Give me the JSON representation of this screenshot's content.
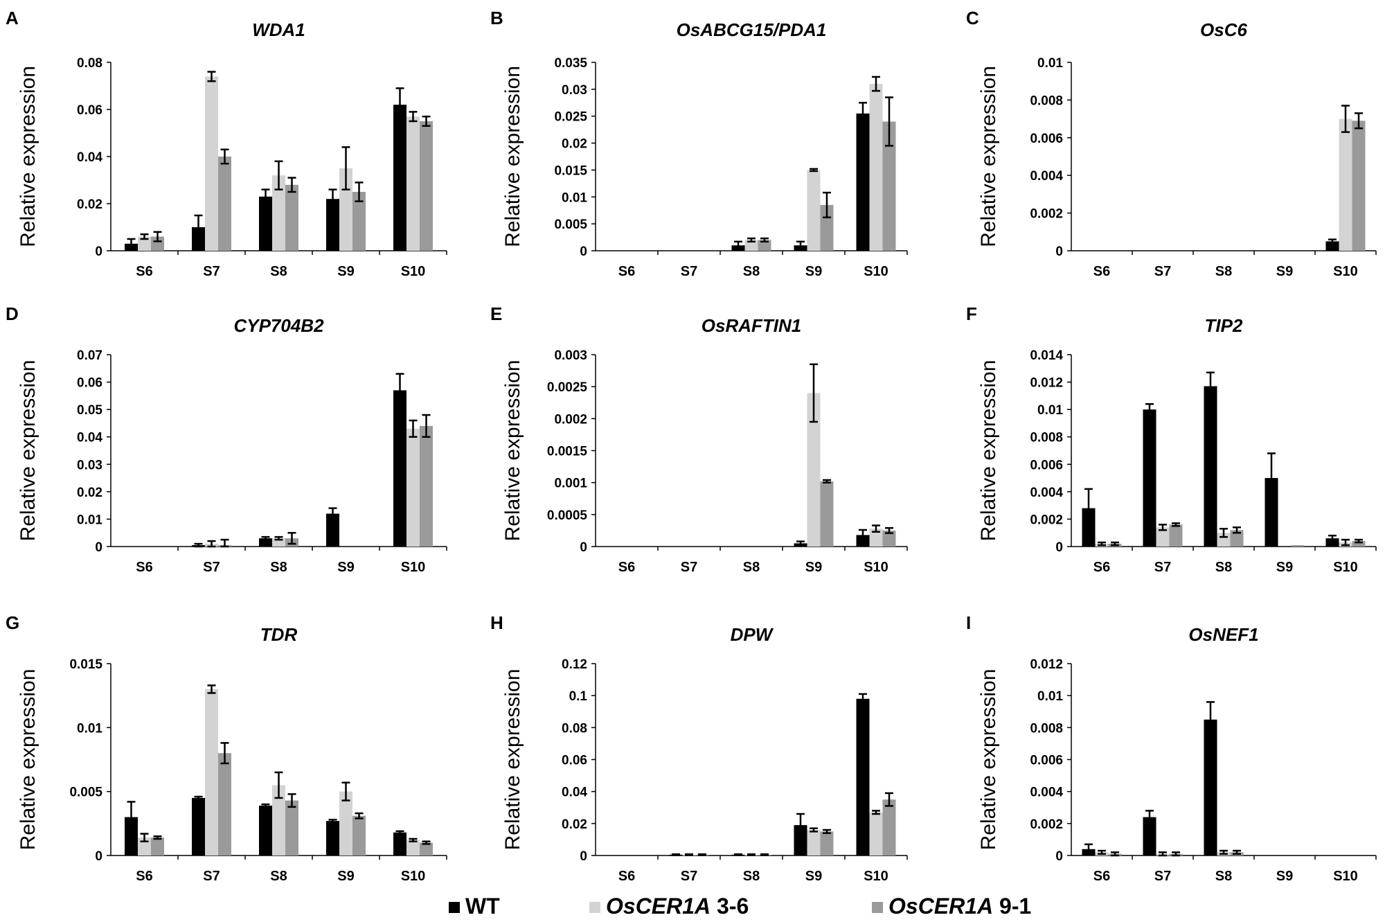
{
  "colors": {
    "wt": "#000000",
    "line36": "#d3d3d3",
    "line91": "#9a9a9a",
    "axis": "#000000",
    "error": "#000000"
  },
  "legend": [
    {
      "key": "wt",
      "name": "WT"
    },
    {
      "key": "line36",
      "name": "OsCER1A",
      "suffix": "3-6"
    },
    {
      "key": "line91",
      "name": "OsCER1A",
      "suffix": "9-1"
    }
  ],
  "chart_data": [
    {
      "letter": "A",
      "type": "bar",
      "title": "WDA1",
      "ylabel": "Relative expression",
      "categories": [
        "S6",
        "S7",
        "S8",
        "S9",
        "S10"
      ],
      "ylim": [
        0,
        0.08
      ],
      "yticks": [
        "0",
        "0.02",
        "0.04",
        "0.06",
        "0.08"
      ],
      "series": [
        {
          "name": "WT",
          "key": "wt",
          "values": [
            0.003,
            0.01,
            0.023,
            0.022,
            0.062
          ],
          "errors": [
            0.002,
            0.005,
            0.003,
            0.004,
            0.007
          ]
        },
        {
          "name": "OsCER1A 3-6",
          "key": "line36",
          "values": [
            0.006,
            0.074,
            0.032,
            0.035,
            0.057
          ],
          "errors": [
            0.001,
            0.002,
            0.006,
            0.009,
            0.002
          ]
        },
        {
          "name": "OsCER1A 9-1",
          "key": "line91",
          "values": [
            0.006,
            0.04,
            0.028,
            0.025,
            0.055
          ],
          "errors": [
            0.002,
            0.003,
            0.003,
            0.004,
            0.002
          ]
        }
      ]
    },
    {
      "letter": "B",
      "type": "bar",
      "title": "OsABCG15/PDA1",
      "ylabel": "Relative expression",
      "categories": [
        "S6",
        "S7",
        "S8",
        "S9",
        "S10"
      ],
      "ylim": [
        0,
        0.035
      ],
      "yticks": [
        "0",
        "0.005",
        "0.01",
        "0.015",
        "0.02",
        "0.025",
        "0.03",
        "0.035"
      ],
      "series": [
        {
          "name": "WT",
          "key": "wt",
          "values": [
            0,
            0,
            0.001,
            0.001,
            0.0255
          ],
          "errors": [
            0,
            0,
            0.0007,
            0.0007,
            0.002
          ]
        },
        {
          "name": "OsCER1A 3-6",
          "key": "line36",
          "values": [
            0,
            0,
            0.002,
            0.015,
            0.031
          ],
          "errors": [
            0,
            0,
            0.0003,
            0.0002,
            0.0013
          ]
        },
        {
          "name": "OsCER1A 9-1",
          "key": "line91",
          "values": [
            0,
            0,
            0.002,
            0.0085,
            0.024
          ],
          "errors": [
            0,
            0,
            0.0003,
            0.0023,
            0.0045
          ]
        }
      ]
    },
    {
      "letter": "C",
      "type": "bar",
      "title": "OsC6",
      "ylabel": "Relative expression",
      "categories": [
        "S6",
        "S7",
        "S8",
        "S9",
        "S10"
      ],
      "ylim": [
        0,
        0.01
      ],
      "yticks": [
        "0",
        "0.002",
        "0.004",
        "0.006",
        "0.008",
        "0.01"
      ],
      "series": [
        {
          "name": "WT",
          "key": "wt",
          "values": [
            0,
            0,
            0,
            0,
            0.0005
          ],
          "errors": [
            0,
            0,
            0,
            0,
            0.0001
          ]
        },
        {
          "name": "OsCER1A 3-6",
          "key": "line36",
          "values": [
            0,
            0,
            0,
            0,
            0.007
          ],
          "errors": [
            0,
            0,
            0,
            0,
            0.0007
          ]
        },
        {
          "name": "OsCER1A 9-1",
          "key": "line91",
          "values": [
            0,
            0,
            0,
            0,
            0.0069
          ],
          "errors": [
            0,
            0,
            0,
            0,
            0.0004
          ]
        }
      ]
    },
    {
      "letter": "D",
      "type": "bar",
      "title": "CYP704B2",
      "ylabel": "Relative expression",
      "categories": [
        "S6",
        "S7",
        "S8",
        "S9",
        "S10"
      ],
      "ylim": [
        0,
        0.07
      ],
      "yticks": [
        "0",
        "0.01",
        "0.02",
        "0.03",
        "0.04",
        "0.05",
        "0.06",
        "0.07"
      ],
      "series": [
        {
          "name": "WT",
          "key": "wt",
          "values": [
            0,
            0.0005,
            0.003,
            0.012,
            0.057
          ],
          "errors": [
            0,
            0.0005,
            0.0005,
            0.002,
            0.006
          ]
        },
        {
          "name": "OsCER1A 3-6",
          "key": "line36",
          "values": [
            0,
            0.001,
            0.003,
            0,
            0.043
          ],
          "errors": [
            0,
            0.001,
            0.0005,
            0,
            0.003
          ]
        },
        {
          "name": "OsCER1A 9-1",
          "key": "line91",
          "values": [
            0,
            0.0005,
            0.003,
            0,
            0.044
          ],
          "errors": [
            0,
            0.002,
            0.002,
            0,
            0.004
          ]
        }
      ]
    },
    {
      "letter": "E",
      "type": "bar",
      "title": "OsRAFTIN1",
      "ylabel": "Relative expression",
      "categories": [
        "S6",
        "S7",
        "S8",
        "S9",
        "S10"
      ],
      "ylim": [
        0,
        0.003
      ],
      "yticks": [
        "0",
        "0.0005",
        "0.001",
        "0.0015",
        "0.002",
        "0.0025",
        "0.003"
      ],
      "series": [
        {
          "name": "WT",
          "key": "wt",
          "values": [
            0,
            0,
            0,
            5e-05,
            0.00018
          ],
          "errors": [
            0,
            0,
            0,
            3e-05,
            8e-05
          ]
        },
        {
          "name": "OsCER1A 3-6",
          "key": "line36",
          "values": [
            0,
            0,
            0,
            0.0024,
            0.00028
          ],
          "errors": [
            0,
            0,
            0,
            0.00045,
            5e-05
          ]
        },
        {
          "name": "OsCER1A 9-1",
          "key": "line91",
          "values": [
            0,
            0,
            0,
            0.00102,
            0.00025
          ],
          "errors": [
            0,
            0,
            0,
            2e-05,
            4e-05
          ]
        }
      ]
    },
    {
      "letter": "F",
      "type": "bar",
      "title": "TIP2",
      "ylabel": "Relative expression",
      "categories": [
        "S6",
        "S7",
        "S8",
        "S9",
        "S10"
      ],
      "ylim": [
        0,
        0.014
      ],
      "yticks": [
        "0",
        "0.002",
        "0.004",
        "0.006",
        "0.008",
        "0.01",
        "0.012",
        "0.014"
      ],
      "series": [
        {
          "name": "WT",
          "key": "wt",
          "values": [
            0.0028,
            0.01,
            0.0117,
            0.005,
            0.0006
          ],
          "errors": [
            0.0014,
            0.0004,
            0.001,
            0.0018,
            0.0002
          ]
        },
        {
          "name": "OsCER1A 3-6",
          "key": "line36",
          "values": [
            0.0002,
            0.0014,
            0.001,
            0,
            0.0003
          ],
          "errors": [
            0.0001,
            0.0002,
            0.0003,
            0,
            0.0002
          ]
        },
        {
          "name": "OsCER1A 9-1",
          "key": "line91",
          "values": [
            0.0002,
            0.0016,
            0.0012,
            0.0001,
            0.0004
          ],
          "errors": [
            0.0001,
            0.0001,
            0.0002,
            0,
            0.0001
          ]
        }
      ]
    },
    {
      "letter": "G",
      "type": "bar",
      "title": "TDR",
      "ylabel": "Relative expression",
      "categories": [
        "S6",
        "S7",
        "S8",
        "S9",
        "S10"
      ],
      "ylim": [
        0,
        0.015
      ],
      "yticks": [
        "0",
        "0.005",
        "0.01",
        "0.015"
      ],
      "series": [
        {
          "name": "WT",
          "key": "wt",
          "values": [
            0.003,
            0.0045,
            0.0039,
            0.0027,
            0.0018
          ],
          "errors": [
            0.0012,
            0.0001,
            0.0001,
            0.0001,
            0.0001
          ]
        },
        {
          "name": "OsCER1A 3-6",
          "key": "line36",
          "values": [
            0.0014,
            0.013,
            0.0055,
            0.005,
            0.0012
          ],
          "errors": [
            0.0003,
            0.0003,
            0.001,
            0.0007,
            0.0001
          ]
        },
        {
          "name": "OsCER1A 9-1",
          "key": "line91",
          "values": [
            0.0014,
            0.008,
            0.0043,
            0.0031,
            0.001
          ],
          "errors": [
            0.0001,
            0.0008,
            0.0005,
            0.0002,
            0.0001
          ]
        }
      ]
    },
    {
      "letter": "H",
      "type": "bar",
      "title": "DPW",
      "ylabel": "Relative expression",
      "categories": [
        "S6",
        "S7",
        "S8",
        "S9",
        "S10"
      ],
      "ylim": [
        0,
        0.12
      ],
      "yticks": [
        "0",
        "0.02",
        "0.04",
        "0.06",
        "0.08",
        "0.1",
        "0.12"
      ],
      "series": [
        {
          "name": "WT",
          "key": "wt",
          "values": [
            0,
            0.0005,
            0.0005,
            0.019,
            0.098
          ],
          "errors": [
            0,
            0.0003,
            0.0003,
            0.007,
            0.003
          ]
        },
        {
          "name": "OsCER1A 3-6",
          "key": "line36",
          "values": [
            0,
            0.0005,
            0.0005,
            0.016,
            0.027
          ],
          "errors": [
            0,
            0.0003,
            0.0003,
            0.001,
            0.001
          ]
        },
        {
          "name": "OsCER1A 9-1",
          "key": "line91",
          "values": [
            0,
            0.0005,
            0.0005,
            0.015,
            0.035
          ],
          "errors": [
            0,
            0.0003,
            0.0003,
            0.001,
            0.004
          ]
        }
      ]
    },
    {
      "letter": "I",
      "type": "bar",
      "title": "OsNEF1",
      "ylabel": "Relative expression",
      "categories": [
        "S6",
        "S7",
        "S8",
        "S9",
        "S10"
      ],
      "ylim": [
        0,
        0.012
      ],
      "yticks": [
        "0",
        "0.002",
        "0.004",
        "0.006",
        "0.008",
        "0.01",
        "0.012"
      ],
      "series": [
        {
          "name": "WT",
          "key": "wt",
          "values": [
            0.0004,
            0.0024,
            0.0085,
            0,
            0
          ],
          "errors": [
            0.0003,
            0.0004,
            0.0011,
            0,
            0
          ]
        },
        {
          "name": "OsCER1A 3-6",
          "key": "line36",
          "values": [
            0.0002,
            0.0001,
            0.0002,
            0,
            0
          ],
          "errors": [
            0.0001,
            0.0001,
            0.0001,
            0,
            0
          ]
        },
        {
          "name": "OsCER1A 9-1",
          "key": "line91",
          "values": [
            0.0001,
            0.0001,
            0.0002,
            0,
            0
          ],
          "errors": [
            0.0001,
            0.0001,
            0.0001,
            0,
            0
          ]
        }
      ]
    }
  ]
}
